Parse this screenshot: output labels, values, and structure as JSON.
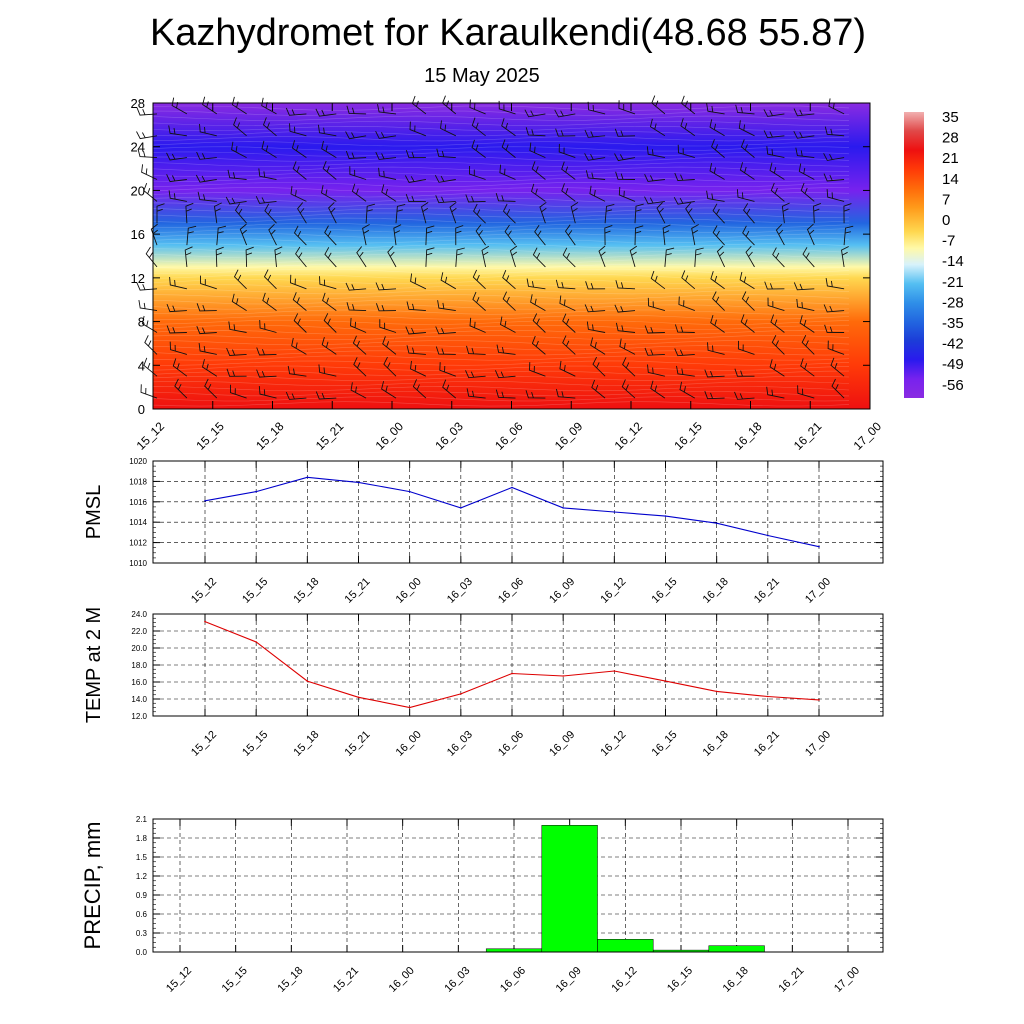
{
  "header": {
    "title": "Kazhydromet for Karaulkendi(48.68 55.87)",
    "date": "15 May 2025"
  },
  "time_labels": [
    "15_12",
    "15_15",
    "15_18",
    "15_21",
    "16_00",
    "16_03",
    "16_06",
    "16_09",
    "16_12",
    "16_15",
    "16_18",
    "16_21",
    "17_00"
  ],
  "chart_data": [
    {
      "type": "heatmap",
      "title": "",
      "xlabel": "",
      "ylabel": "",
      "ylim": [
        0,
        28
      ],
      "y_ticks": [
        0,
        4,
        8,
        12,
        16,
        20,
        24,
        28
      ],
      "y_tick_labels": [
        "0",
        "4",
        "8",
        "12",
        "16",
        "20",
        "24",
        "28"
      ],
      "x_categories": [
        "15_12",
        "15_15",
        "15_18",
        "15_21",
        "16_00",
        "16_03",
        "16_06",
        "16_09",
        "16_12",
        "16_15",
        "16_18",
        "16_21",
        "17_00"
      ],
      "colorbar_labels": [
        "35",
        "28",
        "21",
        "14",
        "7",
        "0",
        "-7",
        "-14",
        "-21",
        "-28",
        "-35",
        "-42",
        "-49",
        "-56"
      ],
      "colorbar_range": [
        -63,
        42
      ],
      "temperature_profile": [
        {
          "level": 0,
          "value": 24
        },
        {
          "level": 4,
          "value": 16
        },
        {
          "level": 8,
          "value": 8
        },
        {
          "level": 12,
          "value": -2
        },
        {
          "level": 13,
          "value": -12
        },
        {
          "level": 15,
          "value": -24
        },
        {
          "level": 17,
          "value": -40
        },
        {
          "level": 20,
          "value": -58
        },
        {
          "level": 24,
          "value": -54
        },
        {
          "level": 28,
          "value": -64
        }
      ],
      "overlay": "wind barbs"
    },
    {
      "type": "line",
      "title": "",
      "ylabel": "PMSL",
      "xlabel": "",
      "ylim": [
        1010,
        1020
      ],
      "y_ticks": [
        "1010",
        "1012",
        "1014",
        "1016",
        "1018",
        "1020"
      ],
      "categories": [
        "15_12",
        "15_15",
        "15_18",
        "15_21",
        "16_00",
        "16_03",
        "16_06",
        "16_09",
        "16_12",
        "16_15",
        "16_18",
        "16_21",
        "17_00"
      ],
      "values": [
        1016.1,
        1017.0,
        1018.4,
        1017.9,
        1017.0,
        1015.4,
        1017.4,
        1015.4,
        1015.0,
        1014.6,
        1013.9,
        1012.7,
        1011.6
      ],
      "color": "#0000cc",
      "grid": true
    },
    {
      "type": "line",
      "title": "",
      "ylabel": "TEMP at 2 M",
      "xlabel": "",
      "ylim": [
        12,
        24
      ],
      "y_ticks": [
        "12.0",
        "14.0",
        "16.0",
        "18.0",
        "20.0",
        "22.0",
        "24.0"
      ],
      "categories": [
        "15_12",
        "15_15",
        "15_18",
        "15_21",
        "16_00",
        "16_03",
        "16_06",
        "16_09",
        "16_12",
        "16_15",
        "16_18",
        "16_21",
        "17_00"
      ],
      "values": [
        23.1,
        20.7,
        16.1,
        14.2,
        13.0,
        14.6,
        17.0,
        16.7,
        17.3,
        16.1,
        14.9,
        14.3,
        13.9
      ],
      "color": "#dd0000",
      "grid": true
    },
    {
      "type": "bar",
      "title": "",
      "ylabel": "PRECIP, mm",
      "xlabel": "",
      "ylim": [
        0,
        2.1
      ],
      "y_ticks": [
        "0.0",
        "0.3",
        "0.6",
        "0.9",
        "1.2",
        "1.5",
        "1.8",
        "2.1"
      ],
      "categories": [
        "15_12",
        "15_15",
        "15_18",
        "15_21",
        "16_00",
        "16_03",
        "16_06",
        "16_09",
        "16_12",
        "16_15",
        "16_18",
        "16_21",
        "17_00"
      ],
      "values": [
        0,
        0,
        0,
        0,
        0,
        0,
        0.05,
        2.0,
        0.2,
        0.03,
        0.1,
        0,
        0
      ],
      "color": "#00ff00",
      "grid": true
    }
  ]
}
